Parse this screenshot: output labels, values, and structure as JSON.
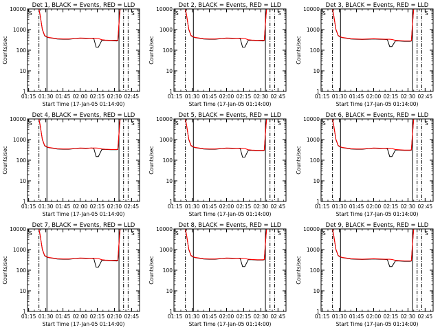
{
  "chart_data": {
    "type": "line",
    "grid": false,
    "y_scale": "log",
    "ylim": [
      1,
      10000
    ],
    "y_ticks": [
      1,
      10,
      100,
      1000,
      10000
    ],
    "y_tick_labels": [
      "1",
      "10",
      "100",
      "1000",
      "10000"
    ],
    "x_ticks": [
      "01:15",
      "01:30",
      "01:45",
      "02:00",
      "02:15",
      "02:30",
      "02:45"
    ],
    "x_range": [
      "01:14",
      "02:52"
    ],
    "xlabel": "Start Time (17-Jan-05 01:14:00)",
    "ylabel": "Counts/sec",
    "colors": {
      "events": "#000000",
      "lld": "#ff0000"
    },
    "times": [
      "01:14",
      "01:18",
      "01:21",
      "01:24",
      "01:25",
      "01:27",
      "01:29",
      "01:31",
      "01:33",
      "01:36",
      "01:40",
      "01:45",
      "01:50",
      "01:55",
      "02:00",
      "02:05",
      "02:10",
      "02:12",
      "02:14",
      "02:16",
      "02:19",
      "02:22",
      "02:27",
      "02:32",
      "02:33",
      "02:34",
      "02:35",
      "02:37",
      "02:40"
    ],
    "panels": [
      {
        "title": "Det 1, BLACK = Events, RED = LLD",
        "events": [
          10000,
          10000,
          10000,
          10000,
          5000,
          1000,
          500,
          430,
          400,
          380,
          350,
          340,
          340,
          360,
          380,
          370,
          380,
          360,
          140,
          140,
          300,
          300,
          290,
          280,
          290,
          2000,
          10000,
          10000,
          10000
        ],
        "lld": [
          10000,
          10000,
          10000,
          10000,
          5200,
          1050,
          520,
          440,
          410,
          390,
          360,
          350,
          350,
          370,
          390,
          380,
          380,
          380,
          380,
          370,
          320,
          310,
          300,
          300,
          300,
          2100,
          10000,
          10000,
          10000
        ]
      },
      {
        "title": "Det 2, BLACK = Events, RED = LLD",
        "events": [
          10000,
          10000,
          10000,
          10000,
          5000,
          1000,
          500,
          430,
          400,
          380,
          350,
          340,
          340,
          360,
          380,
          370,
          380,
          360,
          140,
          140,
          300,
          300,
          290,
          280,
          290,
          2000,
          10000,
          10000,
          10000
        ],
        "lld": [
          10000,
          10000,
          10000,
          10000,
          5200,
          1050,
          520,
          440,
          410,
          390,
          360,
          350,
          350,
          370,
          390,
          380,
          380,
          380,
          380,
          370,
          320,
          310,
          300,
          300,
          300,
          2100,
          10000,
          10000,
          10000
        ]
      },
      {
        "title": "Det 3, BLACK = Events, RED = LLD",
        "events": [
          10000,
          10000,
          10000,
          10000,
          5000,
          1000,
          500,
          430,
          400,
          380,
          350,
          340,
          330,
          340,
          350,
          340,
          330,
          320,
          150,
          150,
          280,
          280,
          270,
          270,
          280,
          2000,
          10000,
          10000,
          10000
        ],
        "lld": [
          10000,
          10000,
          10000,
          10000,
          5200,
          1050,
          520,
          440,
          410,
          390,
          360,
          350,
          340,
          350,
          360,
          350,
          340,
          340,
          340,
          330,
          300,
          290,
          280,
          280,
          290,
          2100,
          10000,
          10000,
          10000
        ]
      },
      {
        "title": "Det 4, BLACK = Events, RED = LLD",
        "events": [
          10000,
          10000,
          10000,
          10000,
          5000,
          1000,
          500,
          430,
          400,
          380,
          350,
          340,
          340,
          360,
          380,
          370,
          390,
          370,
          150,
          150,
          330,
          330,
          320,
          320,
          330,
          2000,
          10000,
          10000,
          10000
        ],
        "lld": [
          10000,
          10000,
          10000,
          10000,
          5200,
          1050,
          520,
          440,
          410,
          390,
          360,
          350,
          350,
          370,
          390,
          380,
          390,
          390,
          390,
          380,
          350,
          340,
          330,
          330,
          340,
          2100,
          10000,
          10000,
          10000
        ]
      },
      {
        "title": "Det 5, BLACK = Events, RED = LLD",
        "events": [
          10000,
          10000,
          10000,
          10000,
          5000,
          1000,
          500,
          430,
          400,
          380,
          350,
          340,
          340,
          360,
          380,
          370,
          380,
          360,
          140,
          140,
          300,
          300,
          290,
          290,
          300,
          2000,
          10000,
          10000,
          10000
        ],
        "lld": [
          10000,
          10000,
          10000,
          10000,
          5200,
          1050,
          520,
          440,
          410,
          390,
          360,
          350,
          350,
          370,
          390,
          380,
          380,
          380,
          380,
          370,
          320,
          310,
          300,
          300,
          310,
          2100,
          10000,
          10000,
          10000
        ]
      },
      {
        "title": "Det 6, BLACK = Events, RED = LLD",
        "events": [
          10000,
          10000,
          10000,
          10000,
          5000,
          1000,
          500,
          430,
          400,
          380,
          350,
          340,
          340,
          360,
          380,
          370,
          380,
          360,
          150,
          150,
          310,
          310,
          300,
          300,
          310,
          2000,
          10000,
          10000,
          10000
        ],
        "lld": [
          10000,
          10000,
          10000,
          10000,
          5200,
          1050,
          520,
          440,
          410,
          390,
          360,
          350,
          350,
          370,
          390,
          380,
          380,
          380,
          380,
          370,
          330,
          320,
          310,
          310,
          320,
          2100,
          10000,
          10000,
          10000
        ]
      },
      {
        "title": "Det 7, BLACK = Events, RED = LLD",
        "events": [
          10000,
          10000,
          10000,
          10000,
          5000,
          1000,
          500,
          430,
          400,
          380,
          350,
          340,
          340,
          360,
          380,
          370,
          380,
          360,
          140,
          140,
          300,
          300,
          290,
          280,
          290,
          2000,
          10000,
          10000,
          10000
        ],
        "lld": [
          10000,
          10000,
          10000,
          10000,
          5200,
          1050,
          520,
          440,
          410,
          390,
          360,
          350,
          350,
          370,
          390,
          380,
          380,
          380,
          380,
          370,
          320,
          310,
          300,
          300,
          300,
          2100,
          10000,
          10000,
          10000
        ]
      },
      {
        "title": "Det 8, BLACK = Events, RED = LLD",
        "events": [
          10000,
          10000,
          10000,
          10000,
          5000,
          1000,
          500,
          430,
          400,
          380,
          350,
          340,
          340,
          360,
          380,
          370,
          380,
          360,
          150,
          150,
          320,
          320,
          310,
          310,
          320,
          2000,
          10000,
          10000,
          10000
        ],
        "lld": [
          10000,
          10000,
          10000,
          10000,
          5200,
          1050,
          520,
          440,
          410,
          390,
          360,
          350,
          350,
          370,
          390,
          380,
          380,
          380,
          380,
          370,
          340,
          330,
          320,
          320,
          330,
          2100,
          10000,
          10000,
          10000
        ]
      },
      {
        "title": "Det 9, BLACK = Events, RED = LLD",
        "events": [
          10000,
          10000,
          10000,
          10000,
          5000,
          1000,
          500,
          430,
          400,
          380,
          350,
          340,
          330,
          340,
          350,
          340,
          330,
          320,
          150,
          150,
          280,
          280,
          270,
          270,
          280,
          2000,
          10000,
          10000,
          10000
        ],
        "lld": [
          10000,
          10000,
          10000,
          10000,
          5200,
          1050,
          520,
          440,
          410,
          390,
          360,
          350,
          340,
          350,
          360,
          350,
          340,
          340,
          340,
          330,
          300,
          290,
          280,
          280,
          290,
          2100,
          10000,
          10000,
          10000
        ]
      }
    ],
    "vertical_markers": [
      {
        "time": "01:24",
        "style": "dash-dot"
      },
      {
        "time": "01:31",
        "style": "solid"
      },
      {
        "time": "02:34",
        "style": "solid"
      },
      {
        "time": "02:38",
        "style": "dash-dot"
      },
      {
        "time": "02:42",
        "style": "dash-dot"
      }
    ],
    "annotation": {
      "text": "S",
      "position": "top-left and top-right of each panel"
    }
  }
}
